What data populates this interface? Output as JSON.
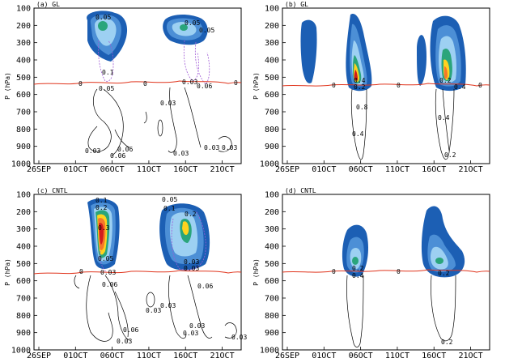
{
  "chart_data": [
    {
      "type": "heatmap",
      "title": "(a) GL",
      "ylabel": "P (hPa)",
      "x_ticks": [
        "26SEP",
        "01OCT",
        "06OCT",
        "11OCT",
        "16OCT",
        "21OCT"
      ],
      "y_ticks": [
        100,
        200,
        300,
        400,
        500,
        600,
        700,
        800,
        900,
        1000
      ],
      "ylim": [
        1000,
        100
      ],
      "contour_labels": [
        "0.05",
        "0.1",
        "0.05",
        "0.05",
        "0",
        "0",
        "0",
        "0.03",
        "0.03",
        "0.06",
        "0.03",
        "0.06",
        "0.03",
        "0.03",
        "0.03",
        "0.06",
        "0.05"
      ],
      "colors": {
        "outer": "#1c5fb4",
        "mid": "#4c8fd6",
        "light": "#9dd0f2",
        "green": "#2aa57b",
        "yellow": "#ffd21e",
        "orange": "#f5782a",
        "red": "#d21c1c",
        "zero_line": "#e0341c",
        "purple": "#a05bd6"
      }
    },
    {
      "type": "heatmap",
      "title": "(b) GL",
      "ylabel": "P (hPa)",
      "x_ticks": [
        "26SEP",
        "01OCT",
        "06OCT",
        "11OCT",
        "16OCT",
        "21OCT"
      ],
      "y_ticks": [
        100,
        200,
        300,
        400,
        500,
        600,
        700,
        800,
        900,
        1000
      ],
      "ylim": [
        1000,
        100
      ],
      "contour_labels": [
        "0",
        "0",
        "0",
        "0.4",
        "0.2",
        "0.8",
        "0.4",
        "0.2",
        "0.4",
        "0.4",
        "0.2"
      ]
    },
    {
      "type": "heatmap",
      "title": "(c) CNTL",
      "ylabel": "P (hPa)",
      "x_ticks": [
        "26SEP",
        "01OCT",
        "06OCT",
        "11OCT",
        "16OCT",
        "21OCT"
      ],
      "y_ticks": [
        100,
        200,
        300,
        400,
        500,
        600,
        700,
        800,
        900,
        1000
      ],
      "ylim": [
        1000,
        100
      ],
      "contour_labels": [
        "0.1",
        "0.2",
        "0.3",
        "0.05",
        "0.03",
        "0",
        "0.06",
        "0.05",
        "0.1",
        "0.2",
        "0.03",
        "0.03",
        "0.03",
        "0.03",
        "0.06",
        "0.03",
        "0.03",
        "0.06",
        "0.03",
        "0.03"
      ]
    },
    {
      "type": "heatmap",
      "title": "(d) CNTL",
      "ylabel": "P (hPa)",
      "x_ticks": [
        "26SEP",
        "01OCT",
        "06OCT",
        "11OCT",
        "16OCT",
        "21OCT"
      ],
      "y_ticks": [
        100,
        200,
        300,
        400,
        500,
        600,
        700,
        800,
        900,
        1000
      ],
      "ylim": [
        1000,
        100
      ],
      "contour_labels": [
        "0.2",
        "0.4",
        "0.2",
        "0",
        "0",
        "0.2"
      ]
    }
  ]
}
